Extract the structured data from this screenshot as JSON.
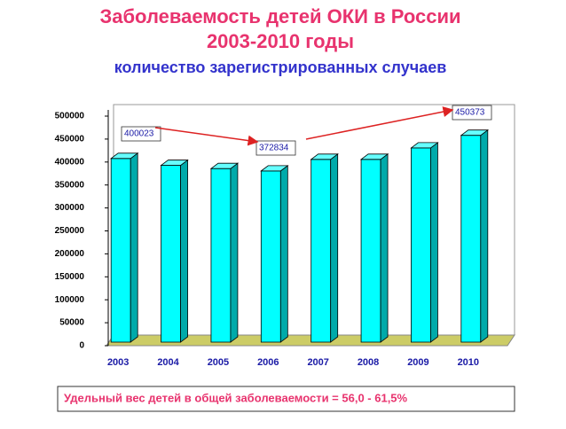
{
  "chart_data": {
    "type": "bar3d",
    "title": [
      "Заболеваемость детей ОКИ в России",
      "2003-2010 годы"
    ],
    "subtitle": "количество зарегистрированных случаев",
    "categories": [
      "2003",
      "2004",
      "2005",
      "2006",
      "2007",
      "2008",
      "2009",
      "2010"
    ],
    "values": [
      400023,
      385000,
      378000,
      372834,
      398000,
      398000,
      423000,
      450373
    ],
    "labeled": [
      0,
      3,
      7
    ],
    "color": "#00ffff",
    "ylim": [
      0,
      500000
    ],
    "yticks": [
      0,
      50000,
      100000,
      150000,
      200000,
      250000,
      300000,
      350000,
      400000,
      450000,
      500000
    ],
    "annotation": "Удельный вес детей в общей заболеваемости = 56,0 - 61,5%"
  }
}
